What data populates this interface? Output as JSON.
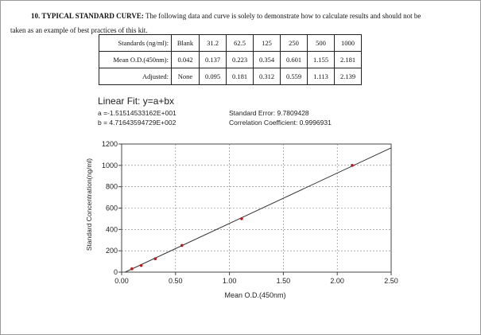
{
  "heading": {
    "title": "10. TYPICAL STANDARD CURVE:",
    "text_line1": "The following data and curve is solely to demonstrate how to calculate results and should not be",
    "text_line2": "taken as an example of best practices of this kit."
  },
  "table": {
    "rows": [
      {
        "label": "Standards (ng/ml):",
        "cells": [
          "Blank",
          "31.2",
          "62.5",
          "125",
          "250",
          "500",
          "1000"
        ]
      },
      {
        "label": "Mean O.D.(450nm):",
        "cells": [
          "0.042",
          "0.137",
          "0.223",
          "0.354",
          "0.601",
          "1.155",
          "2.181"
        ]
      },
      {
        "label": "Adjusted:",
        "cells": [
          "None",
          "0.095",
          "0.181",
          "0.312",
          "0.559",
          "1.113",
          "2.139"
        ]
      }
    ]
  },
  "fit": {
    "title": "Linear Fit: y=a+bx",
    "a_text": "a =-1.51514533162E+001",
    "b_text": "b = 4.71643594729E+002",
    "std_error_text": "Standard Error: 9.7809428",
    "correlation_text": "Correlation Coefficient: 0.9996931"
  },
  "chart_data": {
    "type": "scatter",
    "title": "Linear Fit: y=a+bx",
    "xlabel": "Mean O.D.(450nm)",
    "ylabel": "Standard Concentration(ng/ml)",
    "xlim": [
      0,
      2.5
    ],
    "ylim": [
      0,
      1200
    ],
    "xticks": [
      "0.00",
      "0.50",
      "1.00",
      "1.50",
      "2.00",
      "2.50"
    ],
    "yticks": [
      "0",
      "200",
      "400",
      "600",
      "800",
      "1000",
      "1200"
    ],
    "xtick_values": [
      0,
      0.5,
      1.0,
      1.5,
      2.0,
      2.5
    ],
    "ytick_values": [
      0,
      200,
      400,
      600,
      800,
      1000,
      1200
    ],
    "grid": true,
    "points": [
      {
        "x": 0.095,
        "y": 31.2
      },
      {
        "x": 0.181,
        "y": 62.5
      },
      {
        "x": 0.312,
        "y": 125
      },
      {
        "x": 0.559,
        "y": 250
      },
      {
        "x": 1.113,
        "y": 500
      },
      {
        "x": 2.139,
        "y": 1000
      }
    ],
    "fit_line": {
      "intercept": -15.1514533162,
      "slope": 471.643594729
    },
    "point_color": "#b81b1b",
    "line_color": "#333333"
  }
}
